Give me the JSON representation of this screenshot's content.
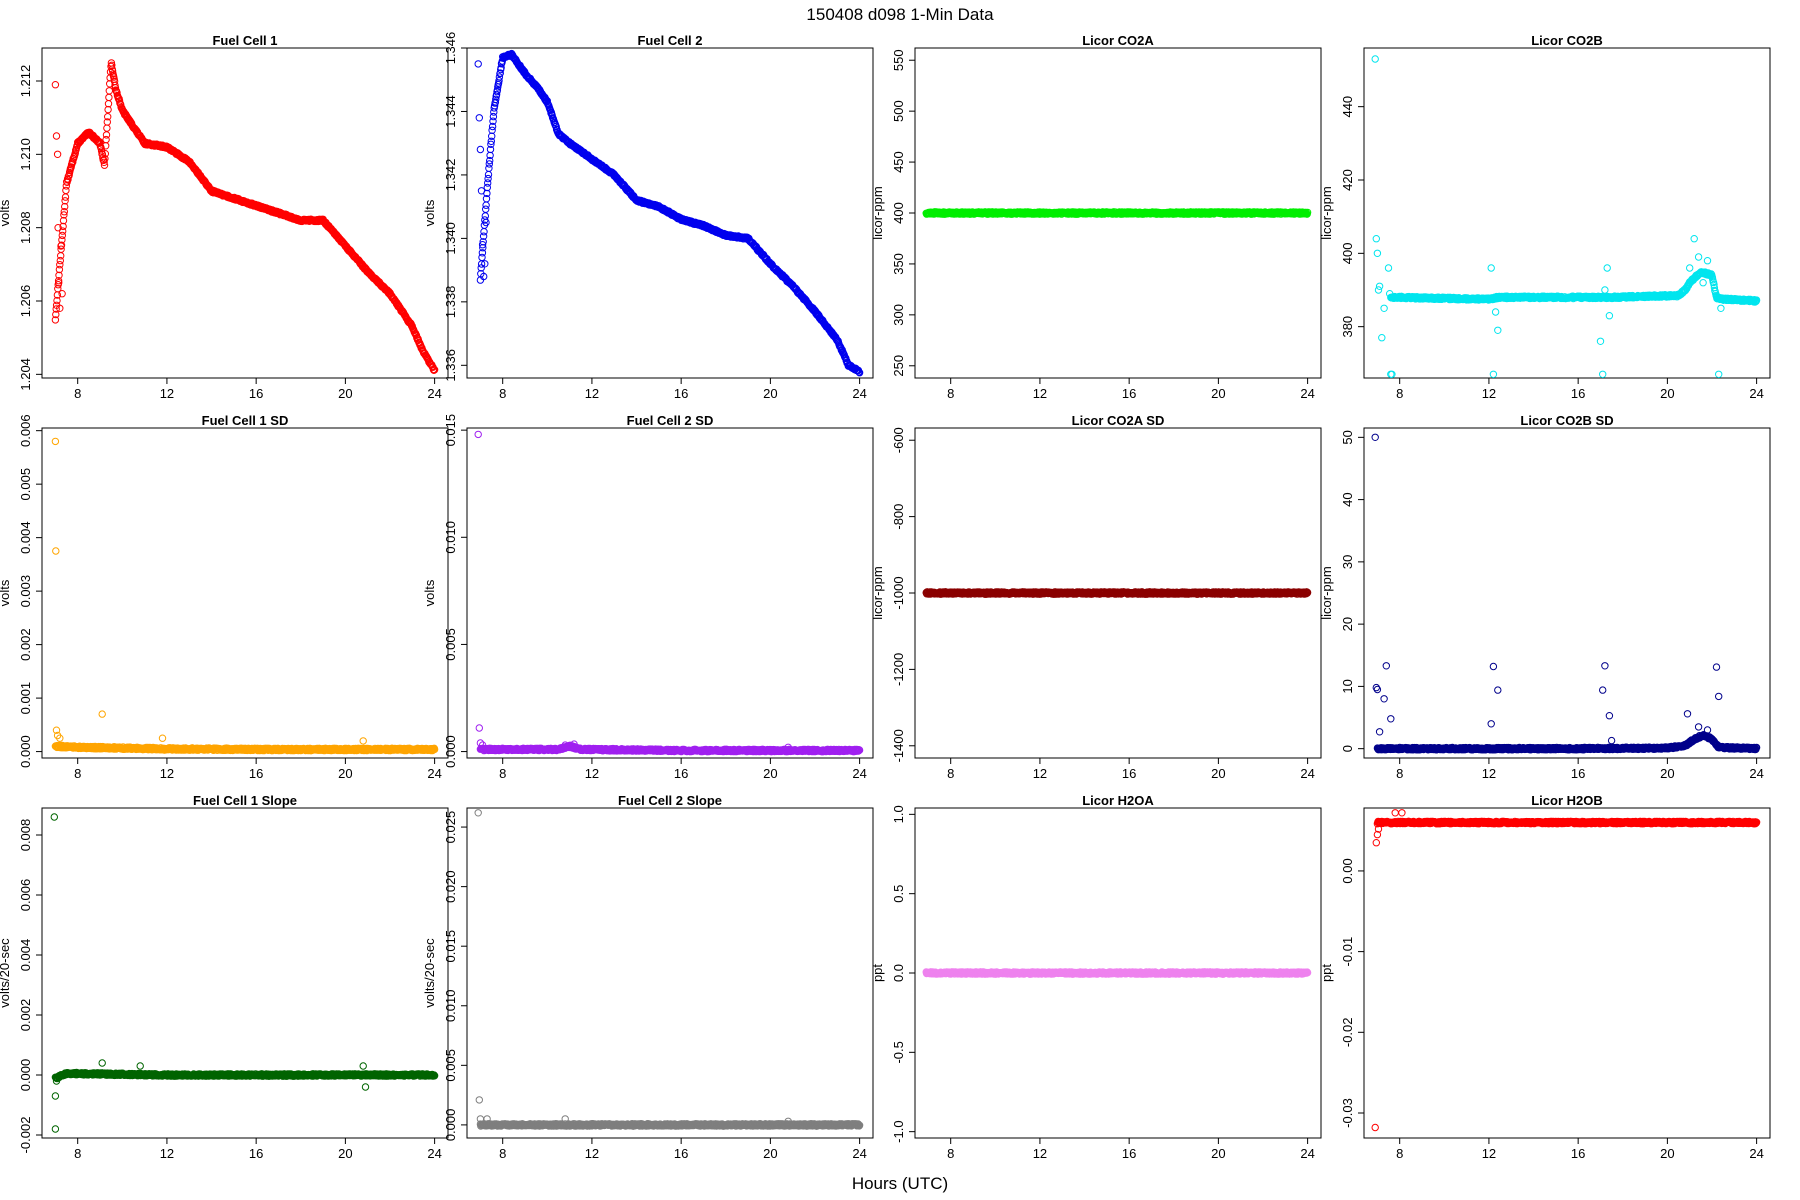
{
  "figure": {
    "title": "150408   d098   1-Min Data",
    "xlabel": "Hours (UTC)"
  },
  "chart_data": [
    {
      "type": "scatter",
      "title": "Fuel Cell 1",
      "ylabel": "volts",
      "color": "#ff0000",
      "xlim": [
        6.4,
        24.6
      ],
      "ylim": [
        1.2039,
        1.2129
      ],
      "xticks": [
        8,
        12,
        16,
        20,
        24
      ],
      "yticks": [
        1.204,
        1.206,
        1.208,
        1.21,
        1.212
      ],
      "ytick_labels": [
        "1.204",
        "1.206",
        "1.208",
        "1.210",
        "1.212"
      ],
      "outliers": [
        [
          7.0,
          1.2119
        ],
        [
          7.05,
          1.2105
        ],
        [
          7.1,
          1.21
        ],
        [
          7.12,
          1.208
        ],
        [
          7.15,
          1.2065
        ],
        [
          7.2,
          1.2058
        ],
        [
          7.25,
          1.2075
        ],
        [
          7.3,
          1.2062
        ]
      ],
      "points": [
        [
          7.0,
          1.2055
        ],
        [
          7.5,
          1.2092
        ],
        [
          8.0,
          1.2103
        ],
        [
          8.5,
          1.2106
        ],
        [
          9.0,
          1.2103
        ],
        [
          9.2,
          1.2097
        ],
        [
          9.5,
          1.2125
        ],
        [
          9.7,
          1.2118
        ],
        [
          10.0,
          1.2112
        ],
        [
          11.0,
          1.2103
        ],
        [
          12.0,
          1.2102
        ],
        [
          13.0,
          1.2098
        ],
        [
          14.0,
          1.209
        ],
        [
          15.0,
          1.2088
        ],
        [
          16.0,
          1.2086
        ],
        [
          17.0,
          1.2084
        ],
        [
          18.0,
          1.2082
        ],
        [
          19.0,
          1.2082
        ],
        [
          20.0,
          1.2075
        ],
        [
          21.0,
          1.2068
        ],
        [
          22.0,
          1.2062
        ],
        [
          23.0,
          1.2053
        ],
        [
          23.5,
          1.2046
        ],
        [
          24.0,
          1.2041
        ]
      ]
    },
    {
      "type": "scatter",
      "title": "Fuel Cell 2",
      "ylabel": "volts",
      "color": "#0000ee",
      "xlim": [
        6.4,
        24.6
      ],
      "ylim": [
        1.3356,
        1.346
      ],
      "xticks": [
        8,
        12,
        16,
        20,
        24
      ],
      "yticks": [
        1.336,
        1.338,
        1.34,
        1.342,
        1.344,
        1.346
      ],
      "ytick_labels": [
        "1.336",
        "1.338",
        "1.340",
        "1.342",
        "1.344",
        "1.346"
      ],
      "outliers": [
        [
          6.9,
          1.3455
        ],
        [
          6.95,
          1.3438
        ],
        [
          7.0,
          1.3428
        ],
        [
          7.05,
          1.3415
        ],
        [
          7.1,
          1.3398
        ],
        [
          7.15,
          1.3388
        ],
        [
          7.2,
          1.3392
        ],
        [
          7.25,
          1.3405
        ]
      ],
      "points": [
        [
          7.0,
          1.3387
        ],
        [
          7.3,
          1.3415
        ],
        [
          7.6,
          1.344
        ],
        [
          8.0,
          1.3457
        ],
        [
          8.4,
          1.3458
        ],
        [
          9.0,
          1.3452
        ],
        [
          9.5,
          1.3448
        ],
        [
          10.0,
          1.3443
        ],
        [
          10.5,
          1.3433
        ],
        [
          11.0,
          1.343
        ],
        [
          12.0,
          1.3425
        ],
        [
          13.0,
          1.342
        ],
        [
          14.0,
          1.3412
        ],
        [
          15.0,
          1.341
        ],
        [
          16.0,
          1.3406
        ],
        [
          17.0,
          1.3404
        ],
        [
          18.0,
          1.3401
        ],
        [
          19.0,
          1.34
        ],
        [
          20.0,
          1.3392
        ],
        [
          21.0,
          1.3385
        ],
        [
          22.0,
          1.3377
        ],
        [
          23.0,
          1.3368
        ],
        [
          23.5,
          1.336
        ],
        [
          24.0,
          1.3358
        ]
      ]
    },
    {
      "type": "scatter",
      "title": "Licor CO2A",
      "ylabel": "licor-ppm",
      "color": "#00ee00",
      "xlim": [
        6.4,
        24.6
      ],
      "ylim": [
        238,
        562
      ],
      "xticks": [
        8,
        12,
        16,
        20,
        24
      ],
      "yticks": [
        250,
        300,
        350,
        400,
        450,
        500,
        550
      ],
      "ytick_labels": [
        "250",
        "300",
        "350",
        "400",
        "450",
        "500",
        "550"
      ],
      "outliers": [],
      "points": [
        [
          6.9,
          400
        ],
        [
          24.0,
          400
        ]
      ]
    },
    {
      "type": "scatter",
      "title": "Licor CO2B",
      "ylabel": "licor-ppm",
      "color": "#00e5ee",
      "xlim": [
        6.4,
        24.6
      ],
      "ylim": [
        366,
        456
      ],
      "xticks": [
        8,
        12,
        16,
        20,
        24
      ],
      "yticks": [
        380,
        400,
        420,
        440
      ],
      "ytick_labels": [
        "380",
        "400",
        "420",
        "440"
      ],
      "outliers": [
        [
          6.9,
          453
        ],
        [
          6.95,
          404
        ],
        [
          7.0,
          400
        ],
        [
          7.05,
          390
        ],
        [
          7.1,
          391
        ],
        [
          7.2,
          377
        ],
        [
          7.3,
          385
        ],
        [
          7.5,
          396
        ],
        [
          7.55,
          389
        ],
        [
          7.6,
          367
        ],
        [
          7.65,
          367
        ],
        [
          12.1,
          396
        ],
        [
          12.2,
          367
        ],
        [
          12.3,
          384
        ],
        [
          12.4,
          379
        ],
        [
          17.0,
          376
        ],
        [
          17.1,
          367
        ],
        [
          17.2,
          390
        ],
        [
          17.3,
          396
        ],
        [
          17.4,
          383
        ],
        [
          21.0,
          396
        ],
        [
          21.2,
          404
        ],
        [
          21.4,
          399
        ],
        [
          21.6,
          392
        ],
        [
          21.8,
          398
        ],
        [
          22.3,
          367
        ],
        [
          22.4,
          385
        ]
      ],
      "points": [
        [
          7.6,
          388
        ],
        [
          12.0,
          387.5
        ],
        [
          12.4,
          388
        ],
        [
          17.0,
          388
        ],
        [
          17.4,
          388
        ],
        [
          20.5,
          388.5
        ],
        [
          20.8,
          390
        ],
        [
          21.0,
          392
        ],
        [
          21.5,
          395
        ],
        [
          22.0,
          394
        ],
        [
          22.2,
          388
        ],
        [
          22.5,
          387.5
        ],
        [
          24.0,
          387
        ]
      ]
    },
    {
      "type": "scatter",
      "title": "Fuel Cell 1 SD",
      "ylabel": "volts",
      "color": "#ffa500",
      "xlim": [
        6.4,
        24.6
      ],
      "ylim": [
        -0.00012,
        0.00605
      ],
      "xticks": [
        8,
        12,
        16,
        20,
        24
      ],
      "yticks": [
        0,
        0.001,
        0.002,
        0.003,
        0.004,
        0.005,
        0.006
      ],
      "ytick_labels": [
        "0.000",
        "0.001",
        "0.002",
        "0.003",
        "0.004",
        "0.005",
        "0.006"
      ],
      "outliers": [
        [
          7.0,
          0.0058
        ],
        [
          7.02,
          0.00375
        ],
        [
          7.05,
          0.0004
        ],
        [
          7.1,
          0.0003
        ],
        [
          7.2,
          0.00025
        ],
        [
          9.1,
          0.0007
        ],
        [
          11.8,
          0.00025
        ],
        [
          20.8,
          0.0002
        ]
      ],
      "points": [
        [
          7.0,
          0.0001
        ],
        [
          8.0,
          8e-05
        ],
        [
          12.0,
          5e-05
        ],
        [
          16.0,
          4e-05
        ],
        [
          20.0,
          4e-05
        ],
        [
          24.0,
          4e-05
        ]
      ]
    },
    {
      "type": "scatter",
      "title": "Fuel Cell 2 SD",
      "ylabel": "volts",
      "color": "#a020f0",
      "xlim": [
        6.4,
        24.6
      ],
      "ylim": [
        -0.0003,
        0.0151
      ],
      "xticks": [
        8,
        12,
        16,
        20,
        24
      ],
      "yticks": [
        0,
        0.005,
        0.01,
        0.015
      ],
      "ytick_labels": [
        "0.000",
        "0.005",
        "0.010",
        "0.015"
      ],
      "outliers": [
        [
          6.9,
          0.0148
        ],
        [
          6.95,
          0.0011
        ],
        [
          7.0,
          0.0004
        ],
        [
          7.1,
          0.0003
        ],
        [
          10.8,
          0.0003
        ],
        [
          11.2,
          0.00035
        ],
        [
          20.8,
          0.0002
        ]
      ],
      "points": [
        [
          7.0,
          0.0001
        ],
        [
          10.5,
          0.0001
        ],
        [
          11.0,
          0.00025
        ],
        [
          11.5,
          0.0001
        ],
        [
          16.0,
          5e-05
        ],
        [
          24.0,
          5e-05
        ]
      ]
    },
    {
      "type": "scatter",
      "title": "Licor CO2A SD",
      "ylabel": "licor-ppm",
      "color": "#8b0000",
      "xlim": [
        6.4,
        24.6
      ],
      "ylim": [
        -1432,
        -568
      ],
      "xticks": [
        8,
        12,
        16,
        20,
        24
      ],
      "yticks": [
        -1400,
        -1200,
        -1000,
        -800,
        -600
      ],
      "ytick_labels": [
        "-1400",
        "-1200",
        "-1000",
        "-800",
        "-600"
      ],
      "outliers": [],
      "points": [
        [
          6.9,
          -1000
        ],
        [
          24.0,
          -1000
        ]
      ]
    },
    {
      "type": "scatter",
      "title": "Licor CO2B SD",
      "ylabel": "licor-ppm",
      "color": "#00008b",
      "xlim": [
        6.4,
        24.6
      ],
      "ylim": [
        -1.5,
        51.5
      ],
      "xticks": [
        8,
        12,
        16,
        20,
        24
      ],
      "yticks": [
        0,
        10,
        20,
        30,
        40,
        50
      ],
      "ytick_labels": [
        "0",
        "10",
        "20",
        "30",
        "40",
        "50"
      ],
      "outliers": [
        [
          6.9,
          50
        ],
        [
          6.95,
          9.8
        ],
        [
          7.0,
          9.5
        ],
        [
          7.1,
          2.7
        ],
        [
          7.3,
          8
        ],
        [
          7.4,
          13.3
        ],
        [
          7.6,
          4.8
        ],
        [
          12.1,
          4
        ],
        [
          12.2,
          13.2
        ],
        [
          12.4,
          9.4
        ],
        [
          17.1,
          9.4
        ],
        [
          17.2,
          13.3
        ],
        [
          17.4,
          5.3
        ],
        [
          17.5,
          1.3
        ],
        [
          20.9,
          5.6
        ],
        [
          21.4,
          3.5
        ],
        [
          21.8,
          3
        ],
        [
          22.2,
          13.1
        ],
        [
          22.3,
          8.4
        ]
      ],
      "points": [
        [
          7.0,
          0
        ],
        [
          12.0,
          0
        ],
        [
          16.0,
          0
        ],
        [
          20.0,
          0.1
        ],
        [
          20.8,
          0.5
        ],
        [
          21.2,
          1.5
        ],
        [
          21.6,
          2.2
        ],
        [
          22.0,
          1.5
        ],
        [
          22.3,
          0.2
        ],
        [
          24.0,
          0
        ]
      ]
    },
    {
      "type": "scatter",
      "title": "Fuel Cell 1 Slope",
      "ylabel": "volts/20-sec",
      "color": "#006400",
      "xlim": [
        6.4,
        24.6
      ],
      "ylim": [
        -0.0021,
        0.0089
      ],
      "xticks": [
        8,
        12,
        16,
        20,
        24
      ],
      "yticks": [
        -0.002,
        0,
        0.002,
        0.004,
        0.006,
        0.008
      ],
      "ytick_labels": [
        "-0.002",
        "0.000",
        "0.002",
        "0.004",
        "0.006",
        "0.008"
      ],
      "outliers": [
        [
          6.95,
          0.0086
        ],
        [
          7.0,
          -0.0007
        ],
        [
          7.0,
          -0.0018
        ],
        [
          7.05,
          -0.0002
        ],
        [
          9.1,
          0.0004
        ],
        [
          10.8,
          0.0003
        ],
        [
          20.8,
          0.0003
        ],
        [
          20.9,
          -0.0004
        ]
      ],
      "points": [
        [
          7.0,
          -0.0001
        ],
        [
          7.5,
          5e-05
        ],
        [
          12.0,
          0
        ],
        [
          16.0,
          0
        ],
        [
          20.0,
          0
        ],
        [
          24.0,
          0
        ]
      ]
    },
    {
      "type": "scatter",
      "title": "Fuel Cell 2 Slope",
      "ylabel": "volts/20-sec",
      "color": "#7f7f7f",
      "xlim": [
        6.4,
        24.6
      ],
      "ylim": [
        -0.0011,
        0.0266
      ],
      "xticks": [
        8,
        12,
        16,
        20,
        24
      ],
      "yticks": [
        0,
        0.005,
        0.01,
        0.015,
        0.02,
        0.025
      ],
      "ytick_labels": [
        "0.000",
        "0.005",
        "0.010",
        "0.015",
        "0.020",
        "0.025"
      ],
      "outliers": [
        [
          6.9,
          0.0262
        ],
        [
          6.95,
          0.0021
        ],
        [
          7.0,
          0.0005
        ],
        [
          7.3,
          0.0005
        ],
        [
          10.8,
          0.0005
        ],
        [
          20.8,
          0.0003
        ]
      ],
      "points": [
        [
          7.0,
          0
        ],
        [
          12.0,
          0
        ],
        [
          16.0,
          0
        ],
        [
          20.0,
          0
        ],
        [
          24.0,
          0
        ]
      ]
    },
    {
      "type": "scatter",
      "title": "Licor H2OA",
      "ylabel": "ppt",
      "color": "#ee82ee",
      "xlim": [
        6.4,
        24.6
      ],
      "ylim": [
        -1.04,
        1.04
      ],
      "xticks": [
        8,
        12,
        16,
        20,
        24
      ],
      "yticks": [
        -1,
        -0.5,
        0,
        0.5,
        1
      ],
      "ytick_labels": [
        "-1.0",
        "-0.5",
        "0.0",
        "0.5",
        "1.0"
      ],
      "outliers": [],
      "points": [
        [
          6.9,
          0
        ],
        [
          24.0,
          0
        ]
      ]
    },
    {
      "type": "scatter",
      "title": "Licor H2OB",
      "ylabel": "ppt",
      "color": "#ff0000",
      "xlim": [
        6.4,
        24.6
      ],
      "ylim": [
        -0.0331,
        0.0078
      ],
      "xticks": [
        8,
        12,
        16,
        20,
        24
      ],
      "yticks": [
        -0.03,
        -0.02,
        -0.01,
        0
      ],
      "ytick_labels": [
        "-0.03",
        "-0.02",
        "-0.01",
        "0.00"
      ],
      "outliers": [
        [
          6.9,
          -0.0318
        ],
        [
          6.95,
          0.0035
        ],
        [
          7.0,
          0.0045
        ],
        [
          7.05,
          0.0052
        ],
        [
          7.8,
          0.0072
        ],
        [
          8.1,
          0.0072
        ]
      ],
      "points": [
        [
          7.0,
          0.006
        ],
        [
          24.0,
          0.006
        ]
      ]
    }
  ]
}
